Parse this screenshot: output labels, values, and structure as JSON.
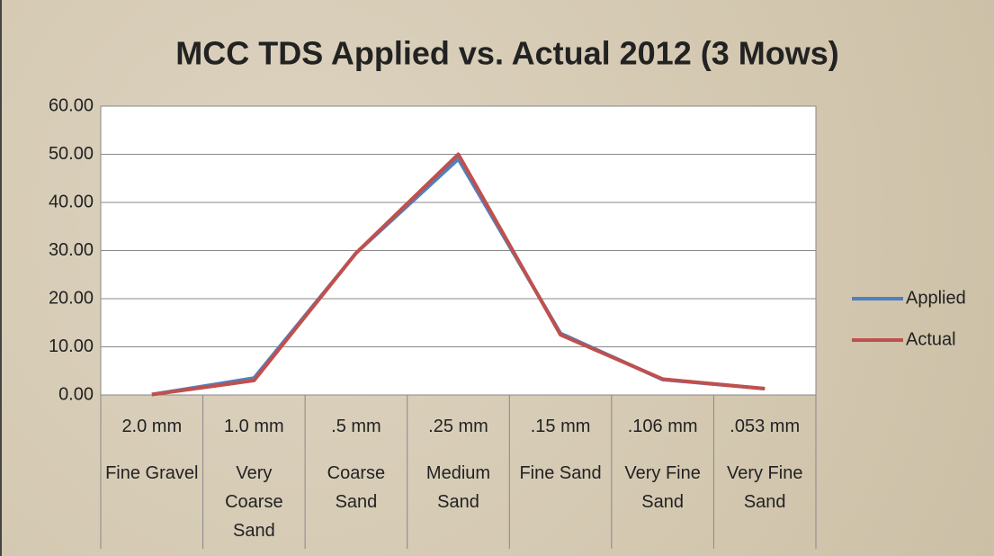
{
  "chart_data": {
    "type": "line",
    "title": "MCC TDS Applied vs. Actual 2012 (3 Mows)",
    "categories": [
      "2.0 mm",
      "1.0 mm",
      ".5 mm",
      ".25 mm",
      ".15 mm",
      ".106 mm",
      ".053 mm"
    ],
    "category_names": [
      "Fine Gravel",
      "Very Coarse Sand",
      "Coarse Sand",
      "Medium Sand",
      "Fine Sand",
      "Very Fine Sand",
      "Very Fine Sand"
    ],
    "series": [
      {
        "name": "Applied",
        "color": "#4f81bd",
        "values": [
          0.1,
          3.5,
          29.5,
          49,
          12.8,
          3.2,
          1.3
        ]
      },
      {
        "name": "Actual",
        "color": "#c0504d",
        "values": [
          0.1,
          3.0,
          29.5,
          50,
          12.5,
          3.3,
          1.3
        ]
      }
    ],
    "ylim": [
      0,
      60
    ],
    "yticks": [
      {
        "value": 0,
        "label": "0.00"
      },
      {
        "value": 10,
        "label": "10.00"
      },
      {
        "value": 20,
        "label": "20.00"
      },
      {
        "value": 30,
        "label": "30.00"
      },
      {
        "value": 40,
        "label": "40.00"
      },
      {
        "value": 50,
        "label": "50.00"
      },
      {
        "value": 60,
        "label": "60.00"
      }
    ],
    "grid": true,
    "legend": "right"
  }
}
